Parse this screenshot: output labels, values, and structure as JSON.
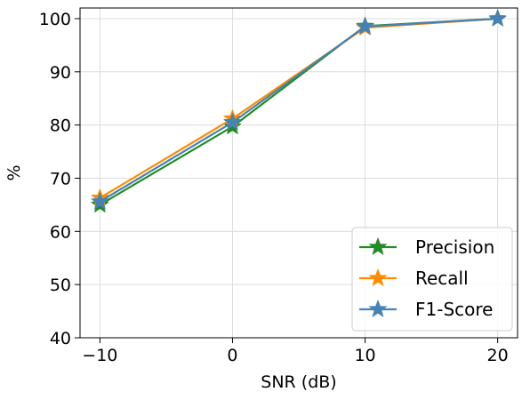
{
  "chart_data": {
    "type": "line",
    "title": "",
    "xlabel": "SNR (dB)",
    "ylabel": "%",
    "x": [
      -10,
      0,
      10,
      20
    ],
    "xlim": [
      -11.5,
      21.5
    ],
    "ylim": [
      40,
      102
    ],
    "xticks": [
      -10,
      0,
      10,
      20
    ],
    "xtick_labels": [
      "−10",
      "0",
      "10",
      "20"
    ],
    "yticks": [
      40,
      50,
      60,
      70,
      80,
      90,
      100
    ],
    "ytick_labels": [
      "40",
      "50",
      "60",
      "70",
      "80",
      "90",
      "100"
    ],
    "grid": true,
    "legend_position": "bottom-right",
    "marker": "star",
    "series": [
      {
        "name": "Precision",
        "color": "#228B22",
        "values": [
          65.0,
          79.7,
          98.6,
          100.0
        ]
      },
      {
        "name": "Recall",
        "color": "#FF8C00",
        "values": [
          66.3,
          81.2,
          98.3,
          100.0
        ]
      },
      {
        "name": "F1-Score",
        "color": "#4682B4",
        "values": [
          65.6,
          80.5,
          98.5,
          100.0
        ]
      }
    ]
  }
}
